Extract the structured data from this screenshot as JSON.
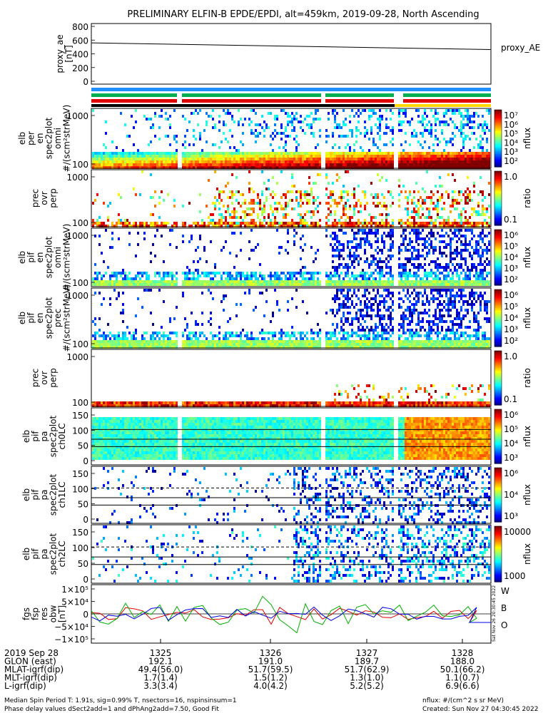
{
  "title": "PRELIMINARY ELFIN-B EPDE/EPDI, alt=459km, 2019-09-28, North Ascending",
  "chart_data": {
    "type": "line",
    "panels": [
      {
        "id": "proxy_ae",
        "ylabel": [
          "proxy_ae",
          "[nT]"
        ],
        "yticks": [
          "800",
          "600",
          "400",
          "200",
          "0"
        ],
        "legend": "proxy_AE",
        "series": [
          {
            "x": [
              0,
              1
            ],
            "y": [
              560,
              462
            ]
          }
        ],
        "ylim": [
          0,
          800
        ]
      },
      {
        "id": "status_bars",
        "colors": [
          "#1e90ff",
          "#00b050",
          "#e00000",
          "#000000",
          "#ffd800"
        ]
      },
      {
        "id": "e_perp_omni",
        "ylabel": [
          "elb",
          "per",
          "en",
          "spec2plot",
          "omni",
          "#/(scm²strMeV)"
        ],
        "yticks": [
          "1000",
          "100"
        ],
        "colorbar": {
          "label": "nflux",
          "ticks": [
            "10⁷",
            "10⁶",
            "10⁵",
            "10⁴",
            "10³",
            "10²"
          ]
        }
      },
      {
        "id": "e_prec_ovr_perp",
        "ylabel": [
          "prec",
          "ovr",
          "perp"
        ],
        "yticks": [
          "1000",
          "100"
        ],
        "colorbar": {
          "label": "ratio",
          "ticks": [
            "1.0",
            "0.1"
          ]
        }
      },
      {
        "id": "e_pif_omni",
        "ylabel": [
          "elb",
          "pif",
          "en",
          "spec2plot",
          "omni",
          "#/(scm²strMeV)"
        ],
        "yticks": [
          "1000",
          "100"
        ],
        "colorbar": {
          "label": "nflux",
          "ticks": [
            "10⁶",
            "10⁵",
            "10⁴",
            "10³",
            "10²"
          ]
        }
      },
      {
        "id": "e_pif_prec",
        "ylabel": [
          "elb",
          "pif",
          "en",
          "spec2plot",
          "prec",
          "#/(scm²strMeV)"
        ],
        "yticks": [
          "1000",
          "100"
        ],
        "colorbar": {
          "label": "nflux",
          "ticks": [
            "10⁶",
            "10⁵",
            "10⁴",
            "10³",
            "10²"
          ]
        }
      },
      {
        "id": "pif_prec_ovr_perp",
        "ylabel": [
          "prec",
          "ovr",
          "perp"
        ],
        "yticks": [
          "1000",
          "100"
        ],
        "colorbar": {
          "label": "ratio",
          "ticks": [
            "1.0",
            "0.1"
          ]
        }
      },
      {
        "id": "pa_ch0LC",
        "ylabel": [
          "elb",
          "pif",
          "pa",
          "spec2plot",
          "ch0LC"
        ],
        "yticks": [
          "150",
          "100",
          "50",
          "0"
        ],
        "colorbar": {
          "label": "nflux",
          "ticks": [
            "10⁶",
            "10⁵",
            "10⁴",
            "10³"
          ]
        }
      },
      {
        "id": "pa_ch1LC",
        "ylabel": [
          "elb",
          "pif",
          "pa",
          "spec2plot",
          "ch1LC"
        ],
        "yticks": [
          "150",
          "100",
          "50",
          "0"
        ],
        "colorbar": {
          "label": "nflux",
          "ticks": [
            "10⁶",
            "10⁴",
            "10³"
          ]
        }
      },
      {
        "id": "pa_ch2LC",
        "ylabel": [
          "elb",
          "pif",
          "pa",
          "spec2plot",
          "ch2LC"
        ],
        "yticks": [
          "150",
          "100",
          "50",
          "0"
        ],
        "colorbar": {
          "label": "nflux",
          "ticks": [
            "10000",
            "1000"
          ]
        }
      },
      {
        "id": "fgs",
        "ylabel": [
          "fgs",
          "fsp",
          "res",
          "obw",
          "[nT]"
        ],
        "yticks": [
          "1×10⁵",
          "5×10⁴",
          "0",
          "−5×10⁴",
          "−1×10⁵"
        ],
        "legend": [
          "W",
          "B",
          "O"
        ],
        "legend_colors": [
          "#e00000",
          "#00b000",
          "#0000e0"
        ],
        "ylim": [
          -100000,
          100000
        ]
      }
    ],
    "xaxis": {
      "ticks": [
        "1325",
        "1326",
        "1327",
        "1328"
      ],
      "rows": [
        {
          "label": "2019 Sep 28",
          "values": [
            "1325",
            "1326",
            "1327",
            "1328"
          ]
        },
        {
          "label": "GLON (east)",
          "values": [
            "192.1",
            "191.0",
            "189.7",
            "188.0"
          ]
        },
        {
          "label": "MLAT-igrf(dip)",
          "values": [
            "49.4(56.0)",
            "51.7(59.5)",
            "51.7(62.9)",
            "50.1(66.2)"
          ]
        },
        {
          "label": "MLT-igrf(dip)",
          "values": [
            "1.7(1.4)",
            "1.5(1.2)",
            "1.3(1.0)",
            "1.1(0.7)"
          ]
        },
        {
          "label": "L-igrf(dip)",
          "values": [
            "3.3(3.4)",
            "4.0(4.2)",
            "5.2(5.2)",
            "6.9(6.6)"
          ]
        }
      ]
    }
  },
  "footer": {
    "left1": "Median Spin Period T: 1.91s, sig=0.99% T, nsectors=16, nspinsinsum=1",
    "left2": "Phase delay values dSect2add=1 and dPhAng2add=7.50, Good Fit",
    "right1": "nflux: #/(cm^2 s sr MeV)",
    "right2": "Created: Sun Nov 27 04:30:45 2022",
    "side_stamp": "Sat Nov 26 20:30:45 2022"
  }
}
